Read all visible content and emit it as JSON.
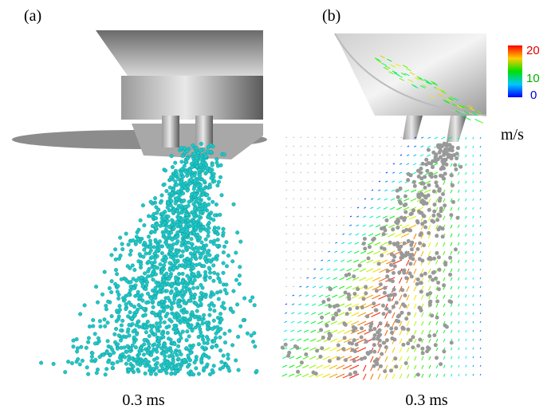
{
  "panels": [
    {
      "label": "(a)",
      "caption": "0.3 ms"
    },
    {
      "label": "(b)",
      "caption": "0.3 ms"
    }
  ],
  "colorbar": {
    "ticks": [
      "20",
      "10",
      "0"
    ],
    "unit": "m/s"
  }
}
